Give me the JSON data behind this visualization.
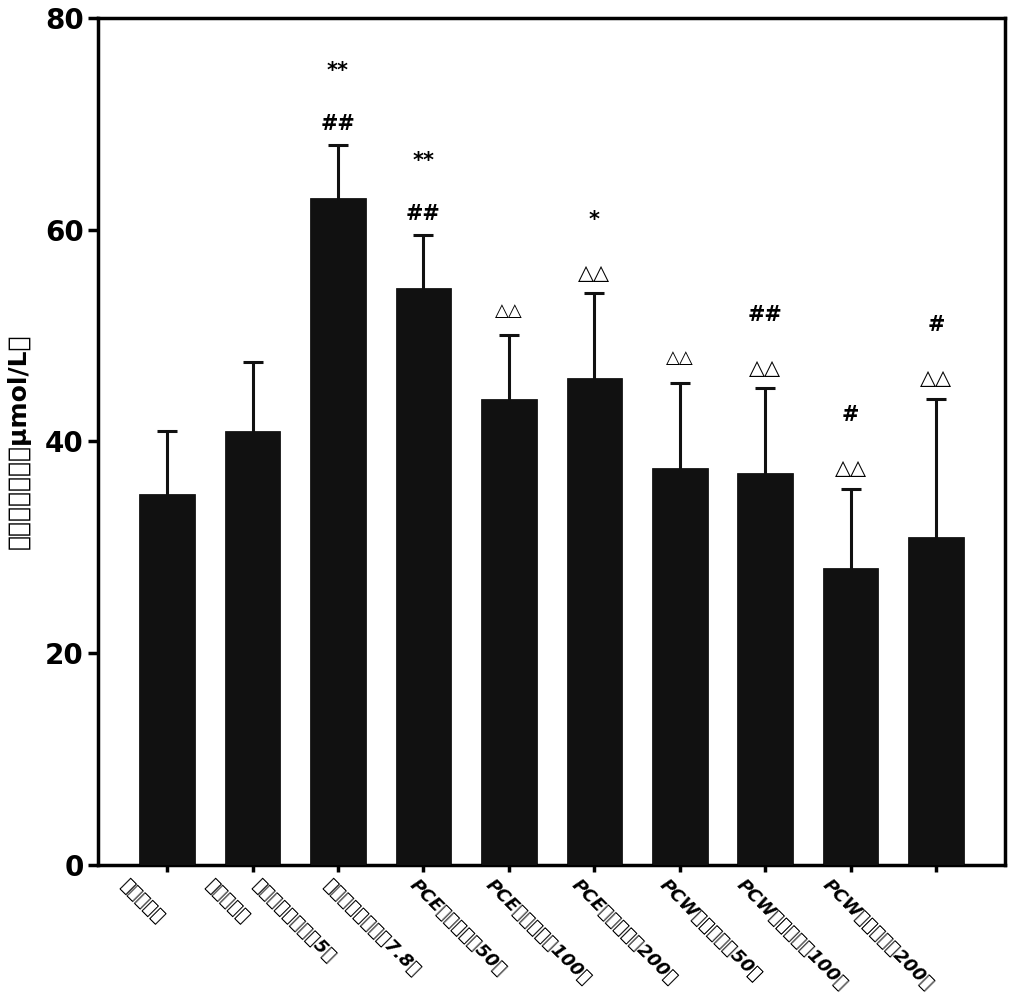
{
  "categories": [
    "正常对照组",
    "模型对照组",
    "别嘴啡醇对照组（5）",
    "苯渴马隆对照组（7.8）",
    "PCE低剂量组（50）",
    "PCE中剂量组（100）",
    "PCE高剂量组（200）",
    "PCW低剂量组（50）",
    "PCW中剂量组（100）",
    "PCW高剂量组（200）"
  ],
  "values": [
    35.0,
    41.0,
    63.0,
    54.5,
    44.0,
    46.0,
    37.5,
    37.0,
    28.0,
    31.0
  ],
  "errors": [
    6.0,
    6.5,
    5.0,
    5.0,
    6.0,
    8.0,
    8.0,
    8.0,
    7.5,
    13.0
  ],
  "annotations": [
    [],
    [],
    [
      "**",
      "##"
    ],
    [
      "**",
      "##"
    ],
    [
      "△△"
    ],
    [
      "*",
      "△△"
    ],
    [
      "△△"
    ],
    [
      "##",
      "△△"
    ],
    [
      "#",
      "△△"
    ],
    [
      "#",
      "△△"
    ]
  ],
  "ylabel": "血清肌酸水平（μmol/L）",
  "ylim": [
    0,
    80
  ],
  "yticks": [
    0,
    20,
    40,
    60,
    80
  ],
  "bar_color": "#111111",
  "error_color": "#111111",
  "background_color": "#ffffff",
  "figsize": [
    10.12,
    10.01
  ],
  "dpi": 100
}
